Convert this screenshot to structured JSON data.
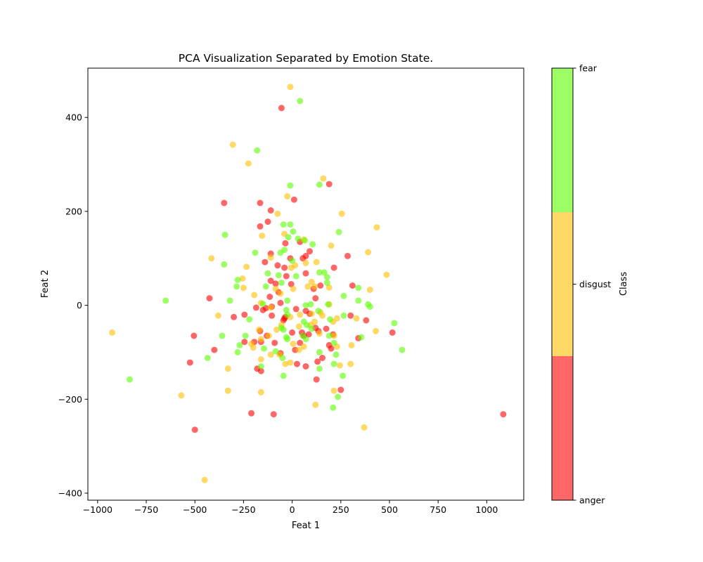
{
  "chart_data": {
    "type": "scatter",
    "title": "PCA Visualization Separated by Emotion State.",
    "xlabel": "Feat 1",
    "ylabel": "Feat 2",
    "xlim": [
      -1050,
      1190
    ],
    "ylim": [
      -415,
      505
    ],
    "x_ticks": [
      -1000,
      -750,
      -500,
      -250,
      0,
      250,
      500,
      750,
      1000
    ],
    "x_tick_labels": [
      "−1000",
      "−750",
      "−500",
      "−250",
      "0",
      "250",
      "500",
      "750",
      "1000"
    ],
    "y_ticks": [
      -400,
      -200,
      0,
      200,
      400
    ],
    "y_tick_labels": [
      "−400",
      "−200",
      "0",
      "200",
      "400"
    ],
    "grid": false,
    "point_alpha": 0.6,
    "colorbar": {
      "label": "Class",
      "classes": [
        {
          "name": "anger",
          "color": "#ff0000"
        },
        {
          "name": "disgust",
          "color": "#ffc000"
        },
        {
          "name": "fear",
          "color": "#5cff00"
        }
      ],
      "tick_labels": [
        "anger",
        "disgust",
        "fear"
      ]
    },
    "series": [
      {
        "name": "anger",
        "color": "#ff0000",
        "points": [
          [
            -55,
            420
          ],
          [
            -350,
            218
          ],
          [
            -165,
            218
          ],
          [
            10,
            225
          ],
          [
            190,
            258
          ],
          [
            -110,
            202
          ],
          [
            -125,
            178
          ],
          [
            -165,
            168
          ],
          [
            -35,
            132
          ],
          [
            40,
            135
          ],
          [
            90,
            115
          ],
          [
            -110,
            110
          ],
          [
            -10,
            100
          ],
          [
            55,
            100
          ],
          [
            70,
            105
          ],
          [
            285,
            105
          ],
          [
            -140,
            92
          ],
          [
            -75,
            85
          ],
          [
            -40,
            80
          ],
          [
            -30,
            62
          ],
          [
            70,
            68
          ],
          [
            215,
            80
          ],
          [
            -85,
            46
          ],
          [
            -110,
            52
          ],
          [
            -5,
            45
          ],
          [
            145,
            42
          ],
          [
            110,
            35
          ],
          [
            310,
            42
          ],
          [
            -425,
            15
          ],
          [
            -115,
            18
          ],
          [
            120,
            15
          ],
          [
            -70,
            28
          ],
          [
            -60,
            5
          ],
          [
            -105,
            -3
          ],
          [
            -135,
            -6
          ],
          [
            -185,
            -5
          ],
          [
            -245,
            -20
          ],
          [
            -300,
            -25
          ],
          [
            -245,
            -78
          ],
          [
            -195,
            -78
          ],
          [
            -150,
            -10
          ],
          [
            -105,
            -22
          ],
          [
            -35,
            -25
          ],
          [
            -45,
            -32
          ],
          [
            20,
            -8
          ],
          [
            70,
            -12
          ],
          [
            90,
            -18
          ],
          [
            120,
            -48
          ],
          [
            135,
            -55
          ],
          [
            175,
            -50
          ],
          [
            210,
            -62
          ],
          [
            300,
            -22
          ],
          [
            380,
            -32
          ],
          [
            515,
            -58
          ],
          [
            -165,
            -55
          ],
          [
            -160,
            -78
          ],
          [
            -130,
            -65
          ],
          [
            0,
            -58
          ],
          [
            50,
            -58
          ],
          [
            85,
            -62
          ],
          [
            15,
            -95
          ],
          [
            40,
            -80
          ],
          [
            340,
            -70
          ],
          [
            -505,
            -65
          ],
          [
            -400,
            -95
          ],
          [
            -525,
            -122
          ],
          [
            -180,
            -135
          ],
          [
            -160,
            -140
          ],
          [
            -90,
            -80
          ],
          [
            -60,
            -102
          ],
          [
            25,
            -125
          ],
          [
            70,
            -130
          ],
          [
            130,
            -120
          ],
          [
            155,
            -112
          ],
          [
            190,
            -85
          ],
          [
            200,
            -92
          ],
          [
            125,
            -158
          ],
          [
            250,
            -180
          ],
          [
            -210,
            -230
          ],
          [
            -95,
            -232
          ],
          [
            -500,
            -265
          ],
          [
            1085,
            -232
          ],
          [
            -40,
            -28
          ],
          [
            60,
            -65
          ]
        ]
      },
      {
        "name": "disgust",
        "color": "#ffc000",
        "points": [
          [
            -10,
            465
          ],
          [
            -305,
            342
          ],
          [
            -225,
            302
          ],
          [
            160,
            270
          ],
          [
            -25,
            232
          ],
          [
            255,
            195
          ],
          [
            -75,
            195
          ],
          [
            435,
            166
          ],
          [
            -40,
            152
          ],
          [
            -155,
            148
          ],
          [
            200,
            127
          ],
          [
            -415,
            100
          ],
          [
            -110,
            102
          ],
          [
            125,
            92
          ],
          [
            390,
            113
          ],
          [
            -235,
            82
          ],
          [
            -5,
            80
          ],
          [
            15,
            85
          ],
          [
            70,
            90
          ],
          [
            100,
            50
          ],
          [
            115,
            40
          ],
          [
            190,
            38
          ],
          [
            -255,
            57
          ],
          [
            -250,
            37
          ],
          [
            -85,
            35
          ],
          [
            -60,
            25
          ],
          [
            80,
            40
          ],
          [
            485,
            65
          ],
          [
            400,
            33
          ],
          [
            -195,
            22
          ],
          [
            -160,
            5
          ],
          [
            -110,
            -5
          ],
          [
            -380,
            -22
          ],
          [
            -10,
            -25
          ],
          [
            40,
            -20
          ],
          [
            100,
            -18
          ],
          [
            145,
            -15
          ],
          [
            155,
            -22
          ],
          [
            190,
            2
          ],
          [
            210,
            -35
          ],
          [
            230,
            -28
          ],
          [
            330,
            -28
          ],
          [
            -170,
            -52
          ],
          [
            -160,
            -72
          ],
          [
            -120,
            -65
          ],
          [
            -80,
            -52
          ],
          [
            -55,
            -42
          ],
          [
            35,
            -45
          ],
          [
            95,
            -42
          ],
          [
            115,
            -35
          ],
          [
            140,
            -60
          ],
          [
            215,
            -65
          ],
          [
            -210,
            -82
          ],
          [
            -200,
            -90
          ],
          [
            -160,
            -115
          ],
          [
            -110,
            -105
          ],
          [
            -65,
            -105
          ],
          [
            -35,
            -125
          ],
          [
            -10,
            -122
          ],
          [
            5,
            -82
          ],
          [
            35,
            -95
          ],
          [
            60,
            -88
          ],
          [
            230,
            -88
          ],
          [
            305,
            -85
          ],
          [
            300,
            -125
          ],
          [
            245,
            -128
          ],
          [
            -330,
            -135
          ],
          [
            -330,
            -182
          ],
          [
            -160,
            -185
          ],
          [
            215,
            -182
          ],
          [
            -570,
            -192
          ],
          [
            120,
            -212
          ],
          [
            370,
            -260
          ],
          [
            -925,
            -58
          ],
          [
            -450,
            -372
          ],
          [
            430,
            -55
          ],
          [
            5,
            35
          ],
          [
            60,
            140
          ]
        ]
      },
      {
        "name": "fear",
        "color": "#5cff00",
        "points": [
          [
            40,
            435
          ],
          [
            -180,
            330
          ],
          [
            -10,
            255
          ],
          [
            140,
            257
          ],
          [
            -10,
            172
          ],
          [
            -45,
            172
          ],
          [
            240,
            156
          ],
          [
            5,
            157
          ],
          [
            -345,
            150
          ],
          [
            -20,
            145
          ],
          [
            30,
            142
          ],
          [
            65,
            138
          ],
          [
            -190,
            112
          ],
          [
            -60,
            112
          ],
          [
            -40,
            118
          ],
          [
            105,
            130
          ],
          [
            -350,
            87
          ],
          [
            0,
            95
          ],
          [
            140,
            70
          ],
          [
            165,
            70
          ],
          [
            -125,
            68
          ],
          [
            -70,
            64
          ],
          [
            20,
            62
          ],
          [
            180,
            60
          ],
          [
            -280,
            54
          ],
          [
            -285,
            40
          ],
          [
            -135,
            40
          ],
          [
            -55,
            48
          ],
          [
            180,
            48
          ],
          [
            340,
            37
          ],
          [
            265,
            20
          ],
          [
            -320,
            10
          ],
          [
            -650,
            10
          ],
          [
            -150,
            3
          ],
          [
            -25,
            10
          ],
          [
            70,
            0
          ],
          [
            95,
            2
          ],
          [
            135,
            -12
          ],
          [
            185,
            2
          ],
          [
            340,
            10
          ],
          [
            390,
            2
          ],
          [
            400,
            -3
          ],
          [
            -220,
            -30
          ],
          [
            -240,
            -65
          ],
          [
            -30,
            -10
          ],
          [
            -25,
            -20
          ],
          [
            60,
            -35
          ],
          [
            75,
            -42
          ],
          [
            100,
            -50
          ],
          [
            195,
            -30
          ],
          [
            265,
            -22
          ],
          [
            -270,
            -85
          ],
          [
            -145,
            -92
          ],
          [
            -55,
            -48
          ],
          [
            -45,
            -52
          ],
          [
            -30,
            -68
          ],
          [
            -25,
            -72
          ],
          [
            55,
            -65
          ],
          [
            70,
            -72
          ],
          [
            190,
            -65
          ],
          [
            215,
            -80
          ],
          [
            355,
            -68
          ],
          [
            525,
            -38
          ],
          [
            565,
            -95
          ],
          [
            -280,
            -100
          ],
          [
            -435,
            -112
          ],
          [
            -85,
            -98
          ],
          [
            -50,
            -112
          ],
          [
            -45,
            -150
          ],
          [
            140,
            -100
          ],
          [
            140,
            -135
          ],
          [
            215,
            -125
          ],
          [
            225,
            -105
          ],
          [
            260,
            -150
          ],
          [
            235,
            -195
          ],
          [
            210,
            -218
          ],
          [
            -835,
            -158
          ],
          [
            -360,
            -65
          ],
          [
            -160,
            -130
          ]
        ]
      }
    ]
  }
}
